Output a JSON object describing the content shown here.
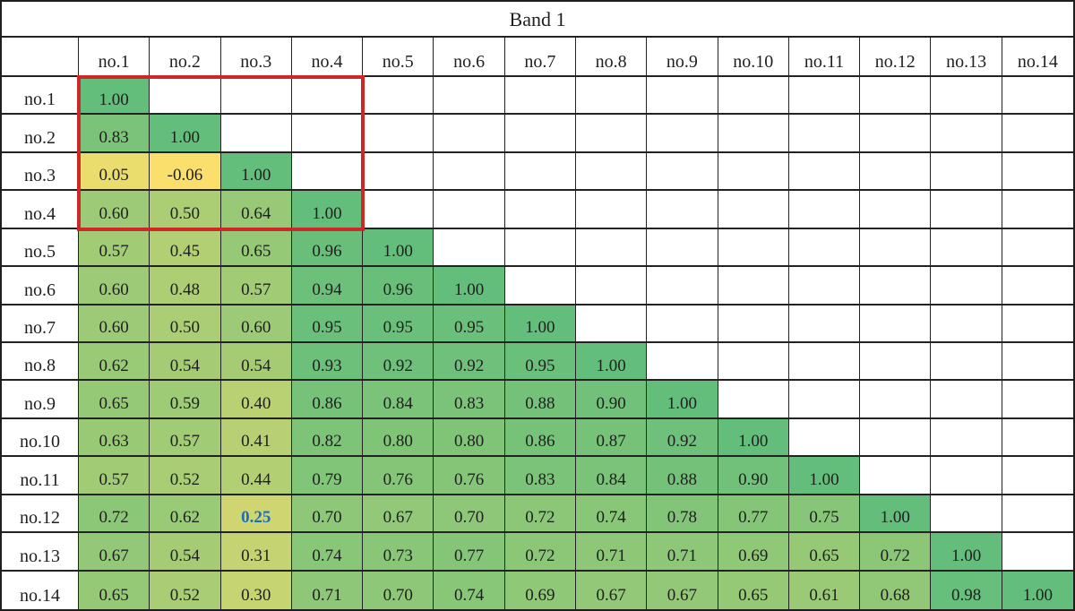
{
  "chart_data": {
    "type": "heatmap",
    "title": "Band 1",
    "col_labels": [
      "no.1",
      "no.2",
      "no.3",
      "no.4",
      "no.5",
      "no.6",
      "no.7",
      "no.8",
      "no.9",
      "no.10",
      "no.11",
      "no.12",
      "no.13",
      "no.14"
    ],
    "row_labels": [
      "no.1",
      "no.2",
      "no.3",
      "no.4",
      "no.5",
      "no.6",
      "no.7",
      "no.8",
      "no.9",
      "no.10",
      "no.11",
      "no.12",
      "no.13",
      "no.14"
    ],
    "matrix_lower_triangle": [
      [
        1.0
      ],
      [
        0.83,
        1.0
      ],
      [
        0.05,
        -0.06,
        1.0
      ],
      [
        0.6,
        0.5,
        0.64,
        1.0
      ],
      [
        0.57,
        0.45,
        0.65,
        0.96,
        1.0
      ],
      [
        0.6,
        0.48,
        0.57,
        0.94,
        0.96,
        1.0
      ],
      [
        0.6,
        0.5,
        0.6,
        0.95,
        0.95,
        0.95,
        1.0
      ],
      [
        0.62,
        0.54,
        0.54,
        0.93,
        0.92,
        0.92,
        0.95,
        1.0
      ],
      [
        0.65,
        0.59,
        0.4,
        0.86,
        0.84,
        0.83,
        0.88,
        0.9,
        1.0
      ],
      [
        0.63,
        0.57,
        0.41,
        0.82,
        0.8,
        0.8,
        0.86,
        0.87,
        0.92,
        1.0
      ],
      [
        0.57,
        0.52,
        0.44,
        0.79,
        0.76,
        0.76,
        0.83,
        0.84,
        0.88,
        0.9,
        1.0
      ],
      [
        0.72,
        0.62,
        0.25,
        0.7,
        0.67,
        0.7,
        0.72,
        0.74,
        0.78,
        0.77,
        0.75,
        1.0
      ],
      [
        0.67,
        0.54,
        0.31,
        0.74,
        0.73,
        0.77,
        0.72,
        0.71,
        0.71,
        0.69,
        0.65,
        0.72,
        1.0
      ],
      [
        0.65,
        0.52,
        0.3,
        0.71,
        0.7,
        0.74,
        0.69,
        0.67,
        0.67,
        0.65,
        0.61,
        0.68,
        0.98,
        1.0
      ]
    ],
    "value_decimals": 2,
    "colorscale": {
      "min_value": -0.06,
      "max_value": 1.0,
      "min_color": "#FBDF6D",
      "max_color": "#63BE7B"
    },
    "annotations": {
      "highlight_cell": {
        "row": "no.12",
        "col": "no.3",
        "value": 0.25,
        "text_color": "#1B6EB8",
        "bold": true
      },
      "highlight_box": {
        "row_start": "no.1",
        "row_end": "no.4",
        "col_start": "no.1",
        "col_end": "no.4",
        "border_color": "#CC2827"
      }
    },
    "layout": {
      "grid": "on",
      "empty_cell_bg": "#FFFFFF",
      "grid_line_color": "#222222",
      "cell_text_color": "#1F1F1F"
    }
  }
}
